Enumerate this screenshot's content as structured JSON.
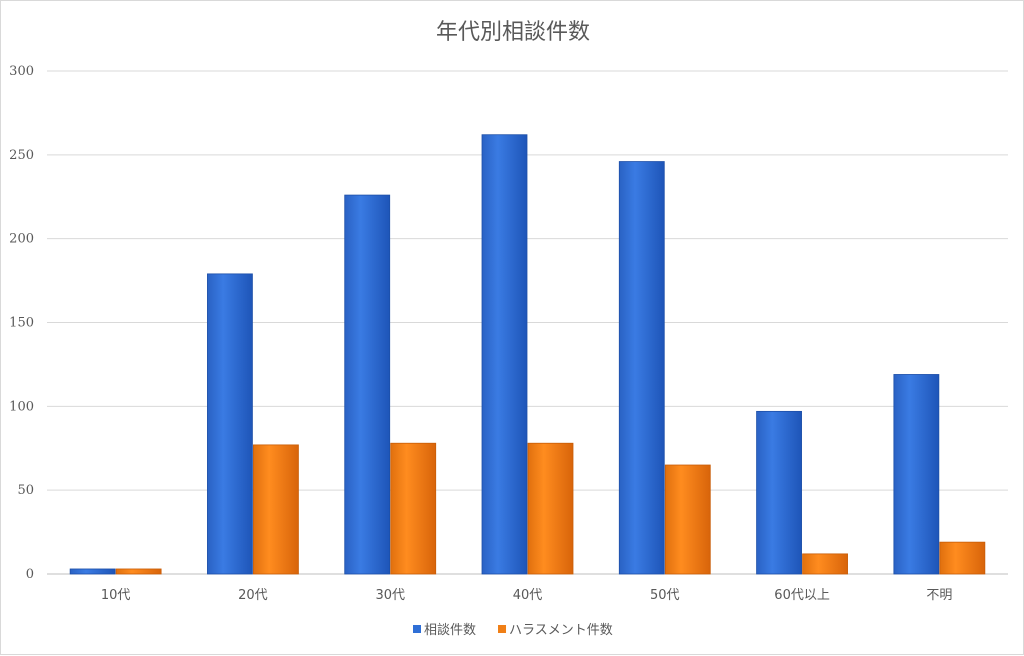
{
  "chart_data": {
    "type": "bar",
    "title": "年代別相談件数",
    "xlabel": "",
    "ylabel": "",
    "categories": [
      "10代",
      "20代",
      "30代",
      "40代",
      "50代",
      "60代以上",
      "不明"
    ],
    "series": [
      {
        "name": "相談件数",
        "values": [
          3,
          179,
          226,
          262,
          246,
          97,
          119
        ],
        "color": "#2f6fd6"
      },
      {
        "name": "ハラスメント件数",
        "values": [
          3,
          77,
          78,
          78,
          65,
          12,
          19
        ],
        "color": "#f07f16"
      }
    ],
    "ylim": [
      0,
      300
    ],
    "yticks": [
      0,
      50,
      100,
      150,
      200,
      250,
      300
    ],
    "grid": true,
    "legend_position": "bottom"
  }
}
